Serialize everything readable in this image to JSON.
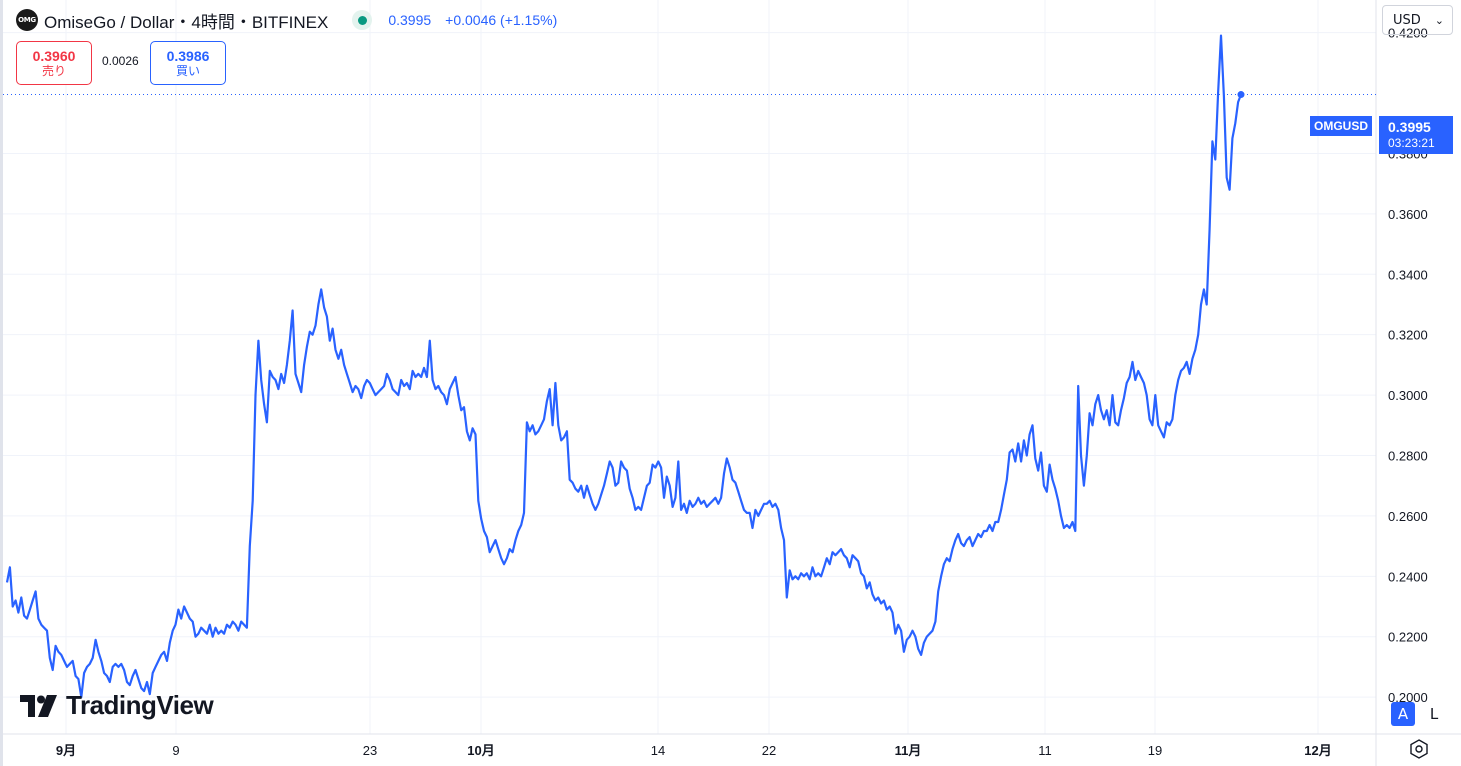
{
  "header": {
    "logo_text": "OMG",
    "title": "OmiseGo / Dollar・4時間・BITFINEX",
    "last_price": "0.3995",
    "change": "+0.0046 (+1.15%)"
  },
  "trade": {
    "sell_price": "0.3960",
    "sell_label": "売り",
    "spread": "0.0026",
    "buy_price": "0.3986",
    "buy_label": "買い"
  },
  "currency": "USD",
  "watermark": "TradingView",
  "price_label": {
    "symbol": "OMGUSD",
    "value": "0.3995",
    "countdown": "03:23:21"
  },
  "controls": {
    "auto": "A",
    "log": "L"
  },
  "colors": {
    "line": "#2962ff",
    "grid": "#f0f3fa",
    "sell": "#f23645",
    "buy": "#2962ff"
  },
  "icons": [
    "omg-logo-icon",
    "market-status-icon",
    "chevron-down-icon",
    "tradingview-logo-icon",
    "settings-icon"
  ],
  "chart_data": {
    "type": "line",
    "series": [
      {
        "name": "OMGUSD",
        "values": [
          0.238,
          0.243,
          0.23,
          0.232,
          0.228,
          0.233,
          0.227,
          0.226,
          0.229,
          0.232,
          0.235,
          0.226,
          0.224,
          0.223,
          0.222,
          0.213,
          0.209,
          0.217,
          0.215,
          0.214,
          0.212,
          0.21,
          0.211,
          0.212,
          0.207,
          0.206,
          0.2,
          0.208,
          0.21,
          0.211,
          0.213,
          0.219,
          0.215,
          0.212,
          0.208,
          0.207,
          0.205,
          0.21,
          0.211,
          0.21,
          0.211,
          0.209,
          0.205,
          0.204,
          0.207,
          0.209,
          0.206,
          0.203,
          0.202,
          0.205,
          0.201,
          0.208,
          0.21,
          0.212,
          0.214,
          0.215,
          0.212,
          0.218,
          0.222,
          0.224,
          0.229,
          0.226,
          0.23,
          0.228,
          0.226,
          0.225,
          0.22,
          0.221,
          0.223,
          0.222,
          0.221,
          0.224,
          0.22,
          0.223,
          0.221,
          0.222,
          0.221,
          0.224,
          0.223,
          0.225,
          0.224,
          0.222,
          0.225,
          0.224,
          0.223,
          0.25,
          0.265,
          0.3,
          0.318,
          0.305,
          0.297,
          0.291,
          0.308,
          0.306,
          0.305,
          0.302,
          0.307,
          0.304,
          0.31,
          0.318,
          0.328,
          0.307,
          0.304,
          0.301,
          0.31,
          0.316,
          0.321,
          0.32,
          0.323,
          0.33,
          0.335,
          0.329,
          0.326,
          0.318,
          0.322,
          0.315,
          0.312,
          0.315,
          0.31,
          0.307,
          0.304,
          0.301,
          0.303,
          0.302,
          0.299,
          0.303,
          0.305,
          0.304,
          0.302,
          0.3,
          0.301,
          0.302,
          0.303,
          0.307,
          0.305,
          0.302,
          0.301,
          0.3,
          0.305,
          0.303,
          0.304,
          0.302,
          0.308,
          0.306,
          0.307,
          0.306,
          0.309,
          0.306,
          0.318,
          0.305,
          0.302,
          0.303,
          0.301,
          0.3,
          0.297,
          0.302,
          0.304,
          0.306,
          0.3,
          0.295,
          0.296,
          0.288,
          0.285,
          0.289,
          0.287,
          0.265,
          0.259,
          0.255,
          0.253,
          0.248,
          0.25,
          0.252,
          0.249,
          0.246,
          0.244,
          0.246,
          0.249,
          0.248,
          0.252,
          0.255,
          0.257,
          0.261,
          0.291,
          0.288,
          0.29,
          0.287,
          0.288,
          0.29,
          0.292,
          0.298,
          0.302,
          0.29,
          0.304,
          0.29,
          0.285,
          0.286,
          0.288,
          0.272,
          0.271,
          0.269,
          0.268,
          0.27,
          0.266,
          0.27,
          0.267,
          0.264,
          0.262,
          0.264,
          0.267,
          0.27,
          0.274,
          0.278,
          0.276,
          0.27,
          0.271,
          0.278,
          0.276,
          0.275,
          0.269,
          0.266,
          0.262,
          0.263,
          0.262,
          0.266,
          0.27,
          0.271,
          0.277,
          0.276,
          0.278,
          0.276,
          0.266,
          0.273,
          0.27,
          0.263,
          0.266,
          0.278,
          0.262,
          0.264,
          0.261,
          0.265,
          0.263,
          0.264,
          0.266,
          0.264,
          0.265,
          0.263,
          0.264,
          0.265,
          0.266,
          0.264,
          0.266,
          0.274,
          0.279,
          0.276,
          0.272,
          0.271,
          0.268,
          0.265,
          0.262,
          0.261,
          0.261,
          0.256,
          0.262,
          0.26,
          0.262,
          0.264,
          0.264,
          0.265,
          0.263,
          0.264,
          0.262,
          0.256,
          0.252,
          0.233,
          0.242,
          0.239,
          0.24,
          0.239,
          0.241,
          0.24,
          0.241,
          0.239,
          0.243,
          0.24,
          0.241,
          0.24,
          0.243,
          0.246,
          0.244,
          0.248,
          0.247,
          0.248,
          0.249,
          0.247,
          0.246,
          0.243,
          0.247,
          0.246,
          0.245,
          0.241,
          0.24,
          0.236,
          0.238,
          0.234,
          0.232,
          0.233,
          0.231,
          0.232,
          0.229,
          0.23,
          0.228,
          0.221,
          0.224,
          0.222,
          0.215,
          0.219,
          0.22,
          0.222,
          0.22,
          0.216,
          0.214,
          0.218,
          0.22,
          0.221,
          0.222,
          0.225,
          0.235,
          0.24,
          0.244,
          0.246,
          0.245,
          0.249,
          0.252,
          0.254,
          0.251,
          0.25,
          0.252,
          0.253,
          0.25,
          0.252,
          0.254,
          0.253,
          0.255,
          0.255,
          0.257,
          0.255,
          0.258,
          0.258,
          0.262,
          0.267,
          0.272,
          0.281,
          0.282,
          0.278,
          0.284,
          0.278,
          0.285,
          0.28,
          0.287,
          0.29,
          0.279,
          0.275,
          0.281,
          0.27,
          0.268,
          0.277,
          0.272,
          0.269,
          0.265,
          0.26,
          0.256,
          0.257,
          0.256,
          0.258,
          0.255,
          0.303,
          0.28,
          0.27,
          0.28,
          0.294,
          0.29,
          0.297,
          0.3,
          0.295,
          0.292,
          0.295,
          0.29,
          0.3,
          0.291,
          0.29,
          0.295,
          0.299,
          0.304,
          0.306,
          0.311,
          0.305,
          0.308,
          0.306,
          0.304,
          0.3,
          0.292,
          0.29,
          0.3,
          0.29,
          0.288,
          0.286,
          0.291,
          0.29,
          0.292,
          0.3,
          0.305,
          0.308,
          0.309,
          0.311,
          0.307,
          0.312,
          0.315,
          0.32,
          0.33,
          0.335,
          0.33,
          0.355,
          0.384,
          0.378,
          0.4,
          0.419,
          0.399,
          0.372,
          0.368,
          0.385,
          0.39,
          0.397,
          0.3995
        ]
      }
    ],
    "x_ticks": [
      "9月",
      "9",
      "23",
      "10月",
      "14",
      "22",
      "11月",
      "11",
      "19",
      "12月"
    ],
    "y_ticks": [
      "0.4200",
      "0.3800",
      "0.3600",
      "0.3400",
      "0.3200",
      "0.3000",
      "0.2800",
      "0.2600",
      "0.2400",
      "0.2200",
      "0.2000"
    ],
    "ylim": [
      0.1878,
      0.4308
    ],
    "grid": true,
    "last_value": 0.3995
  }
}
